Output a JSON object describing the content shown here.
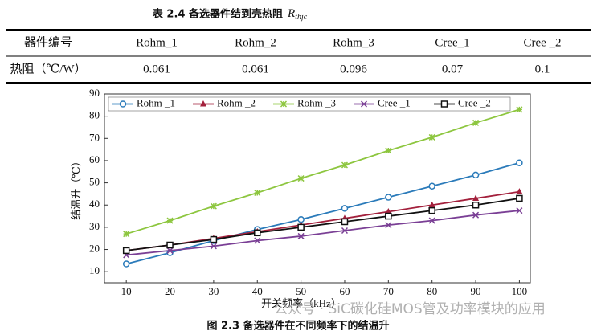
{
  "table": {
    "caption": "表 2.4 备选器件结到壳热阻",
    "caption_symbol": {
      "base": "R",
      "sub": "thjc"
    },
    "header": [
      "器件编号",
      "Rohm_1",
      "Rohm_2",
      "Rohm_3",
      "Cree_1",
      "Cree _2"
    ],
    "rows": [
      [
        "热阻（℃/W）",
        "0.061",
        "0.061",
        "0.096",
        "0.07",
        "0.1"
      ]
    ]
  },
  "chart_data": {
    "type": "line",
    "caption": "图 2.3 备选器件在不同频率下的结温升",
    "x_label": "开关频率（kHz）",
    "y_label": "结温升（℃）",
    "x": [
      10,
      20,
      30,
      40,
      50,
      60,
      70,
      80,
      90,
      100
    ],
    "xlim": [
      5,
      102.5
    ],
    "ylim": [
      5,
      90
    ],
    "xticks": [
      10,
      20,
      30,
      40,
      50,
      60,
      70,
      80,
      90,
      100
    ],
    "yticks": [
      10,
      20,
      30,
      40,
      50,
      60,
      70,
      80,
      90
    ],
    "legend": "top-left",
    "series": [
      {
        "name": "Rohm _1",
        "color": "#2b7bba",
        "marker": "circle",
        "values": [
          13.5,
          18.5,
          24,
          29,
          33.5,
          38.5,
          43.5,
          48.5,
          53.5,
          59
        ]
      },
      {
        "name": "Rohm _2",
        "color": "#a3203c",
        "marker": "triangle",
        "values": [
          19.5,
          22,
          25,
          28,
          31,
          34,
          37,
          40,
          43,
          46
        ]
      },
      {
        "name": "Rohm _3",
        "color": "#8dc63f",
        "marker": "star",
        "values": [
          27,
          33,
          39.5,
          45.5,
          52,
          58,
          64.5,
          70.5,
          77,
          83
        ]
      },
      {
        "name": "Cree _1",
        "color": "#7a3f95",
        "marker": "x",
        "values": [
          17.5,
          19.5,
          21.5,
          24,
          26,
          28.5,
          31,
          33,
          35.5,
          37.5
        ]
      },
      {
        "name": "Cree _2",
        "color": "#111111",
        "marker": "square",
        "values": [
          19.5,
          22,
          24.5,
          27.5,
          30,
          32.5,
          35,
          37.5,
          40,
          43
        ]
      }
    ]
  },
  "watermark": "公众号 · SiC碳化硅MOS管及功率模块的应用"
}
